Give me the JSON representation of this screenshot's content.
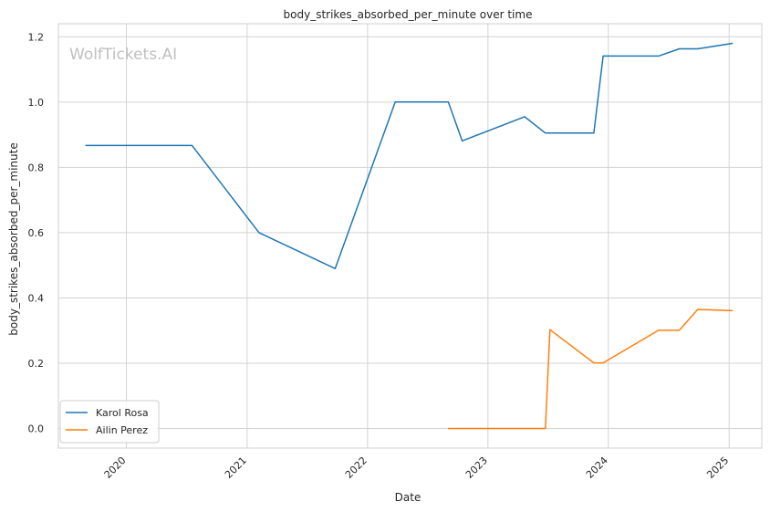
{
  "chart_data": {
    "type": "line",
    "title": "body_strikes_absorbed_per_minute over time",
    "xlabel": "Date",
    "ylabel": "body_strikes_absorbed_per_minute",
    "watermark": "WolfTickets.AI",
    "x_ticks": [
      "2020",
      "2021",
      "2022",
      "2023",
      "2024",
      "2025"
    ],
    "y_ticks": [
      "0.0",
      "0.2",
      "0.4",
      "0.6",
      "0.8",
      "1.0",
      "1.2"
    ],
    "xlim": [
      "2019-06-09",
      "2025-04-10"
    ],
    "ylim": [
      -0.06,
      1.24
    ],
    "grid": true,
    "legend_position": "lower-left",
    "series": [
      {
        "name": "Karol Rosa",
        "color": "#1f77b4",
        "points": [
          [
            "2019-08-31",
            0.867
          ],
          [
            "2020-07-18",
            0.867
          ],
          [
            "2021-02-06",
            0.6
          ],
          [
            "2021-09-25",
            0.49
          ],
          [
            "2022-03-26",
            1.0
          ],
          [
            "2022-09-03",
            1.0
          ],
          [
            "2022-10-15",
            0.881
          ],
          [
            "2023-04-22",
            0.955
          ],
          [
            "2023-06-24",
            0.905
          ],
          [
            "2023-11-18",
            0.905
          ],
          [
            "2023-12-16",
            1.141
          ],
          [
            "2024-06-01",
            1.141
          ],
          [
            "2024-08-03",
            1.163
          ],
          [
            "2024-09-28",
            1.163
          ],
          [
            "2025-01-11",
            1.18
          ]
        ]
      },
      {
        "name": "Ailin Perez",
        "color": "#ff7f0e",
        "points": [
          [
            "2022-09-03",
            0.0
          ],
          [
            "2023-06-24",
            0.0
          ],
          [
            "2023-07-08",
            0.303
          ],
          [
            "2023-11-18",
            0.201
          ],
          [
            "2023-12-16",
            0.201
          ],
          [
            "2024-06-01",
            0.301
          ],
          [
            "2024-08-03",
            0.301
          ],
          [
            "2024-09-28",
            0.365
          ],
          [
            "2025-01-11",
            0.361
          ]
        ]
      }
    ]
  }
}
